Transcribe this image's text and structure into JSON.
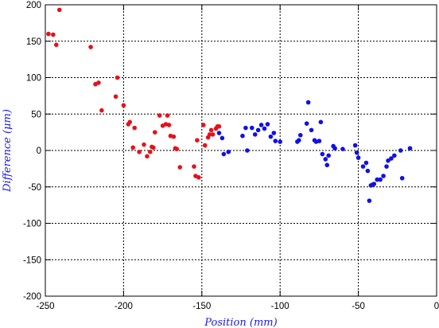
{
  "chart_data": {
    "type": "scatter",
    "xlabel": "Position (mm)",
    "ylabel": "Difference (μm)",
    "xlim": [
      -250,
      0
    ],
    "ylim": [
      -200,
      200
    ],
    "xticks": [
      -250,
      -200,
      -150,
      -100,
      -50,
      0
    ],
    "yticks": [
      -200,
      -150,
      -100,
      -50,
      0,
      50,
      100,
      150,
      200
    ],
    "grid": true,
    "series": [
      {
        "color": "#e8101a",
        "points": [
          [
            -248,
            160
          ],
          [
            -245,
            159
          ],
          [
            -243,
            145
          ],
          [
            -241,
            193
          ],
          [
            -221,
            142
          ],
          [
            -218,
            91
          ],
          [
            -216,
            93
          ],
          [
            -214,
            55
          ],
          [
            -205,
            74
          ],
          [
            -204,
            100
          ],
          [
            -200,
            62
          ],
          [
            -197,
            36
          ],
          [
            -196,
            39
          ],
          [
            -194,
            4
          ],
          [
            -193,
            31
          ],
          [
            -190,
            -2
          ],
          [
            -187,
            8
          ],
          [
            -185,
            -8
          ],
          [
            -183,
            -2
          ],
          [
            -182,
            5
          ],
          [
            -181,
            4
          ],
          [
            -180,
            25
          ],
          [
            -177,
            48
          ],
          [
            -175,
            34
          ],
          [
            -173,
            36
          ],
          [
            -172,
            48
          ],
          [
            -171,
            35
          ],
          [
            -170,
            20
          ],
          [
            -168,
            19
          ],
          [
            -167,
            3
          ],
          [
            -166,
            2
          ],
          [
            -164,
            -23
          ],
          [
            -155,
            -22
          ],
          [
            -154,
            -35
          ],
          [
            -153,
            14
          ],
          [
            -152,
            -37
          ],
          [
            -149,
            35
          ],
          [
            -148,
            7
          ],
          [
            -146,
            18
          ],
          [
            -145,
            22
          ],
          [
            -144,
            28
          ],
          [
            -143,
            22
          ],
          [
            -141,
            30
          ],
          [
            -140,
            33
          ],
          [
            -139,
            33
          ]
        ]
      },
      {
        "color": "#1010e8",
        "points": [
          [
            -139,
            24
          ],
          [
            -137,
            17
          ],
          [
            -136,
            -5
          ],
          [
            -133,
            -2
          ],
          [
            -124,
            20
          ],
          [
            -122,
            31
          ],
          [
            -121,
            0
          ],
          [
            -118,
            31
          ],
          [
            -116,
            22
          ],
          [
            -114,
            28
          ],
          [
            -112,
            35
          ],
          [
            -110,
            30
          ],
          [
            -108,
            36
          ],
          [
            -106,
            19
          ],
          [
            -104,
            24
          ],
          [
            -103,
            13
          ],
          [
            -100,
            12
          ],
          [
            -89,
            12
          ],
          [
            -88,
            14
          ],
          [
            -87,
            21
          ],
          [
            -83,
            37
          ],
          [
            -82,
            66
          ],
          [
            -80,
            28
          ],
          [
            -78,
            14
          ],
          [
            -77,
            12
          ],
          [
            -75,
            13
          ],
          [
            -74,
            39
          ],
          [
            -73,
            -5
          ],
          [
            -71,
            -12
          ],
          [
            -70,
            -20
          ],
          [
            -69,
            -7
          ],
          [
            -66,
            6
          ],
          [
            -65,
            3
          ],
          [
            -60,
            2
          ],
          [
            -52,
            7
          ],
          [
            -51,
            -3
          ],
          [
            -50,
            -10
          ],
          [
            -47,
            -22
          ],
          [
            -45,
            -17
          ],
          [
            -44,
            -28
          ],
          [
            -43,
            -69
          ],
          [
            -42,
            -48
          ],
          [
            -41,
            -47
          ],
          [
            -40,
            -46
          ],
          [
            -38,
            -40
          ],
          [
            -36,
            -40
          ],
          [
            -34,
            -35
          ],
          [
            -32,
            -22
          ],
          [
            -31,
            -14
          ],
          [
            -29,
            -11
          ],
          [
            -27,
            -7
          ],
          [
            -23,
            0
          ],
          [
            -22,
            -38
          ],
          [
            -17,
            3
          ]
        ]
      }
    ]
  }
}
